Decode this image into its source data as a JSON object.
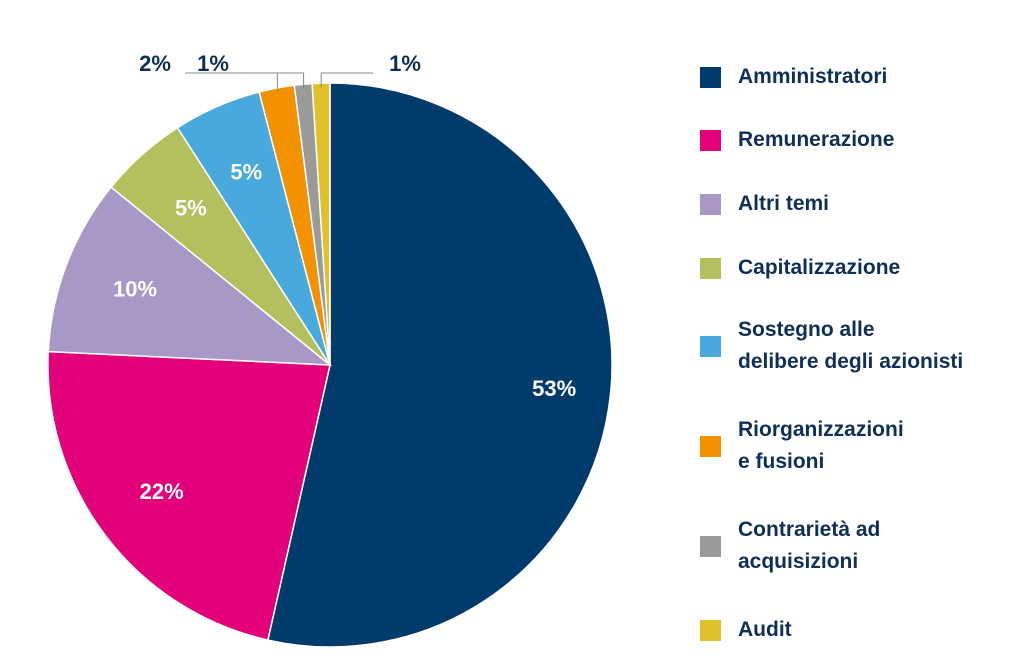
{
  "chart_data": {
    "type": "pie",
    "categories": [
      "Amministratori",
      "Remunerazione",
      "Altri temi",
      "Capitalizzazione",
      "Sostegno alle\ndelibere degli azionisti",
      "Riorganizzazioni\ne fusioni",
      "Contrarietà ad\nacquisizioni",
      "Audit"
    ],
    "values": [
      53,
      22,
      10,
      5,
      5,
      2,
      1,
      1
    ],
    "value_labels": [
      "53%",
      "22%",
      "10%",
      "5%",
      "5%",
      "2%",
      "1%",
      "1%"
    ],
    "colors": [
      "#003b6b",
      "#e3007b",
      "#a898c8",
      "#b4bf5e",
      "#49a8dc",
      "#f29200",
      "#9a9a9a",
      "#e0c12b"
    ],
    "legend": "right"
  }
}
